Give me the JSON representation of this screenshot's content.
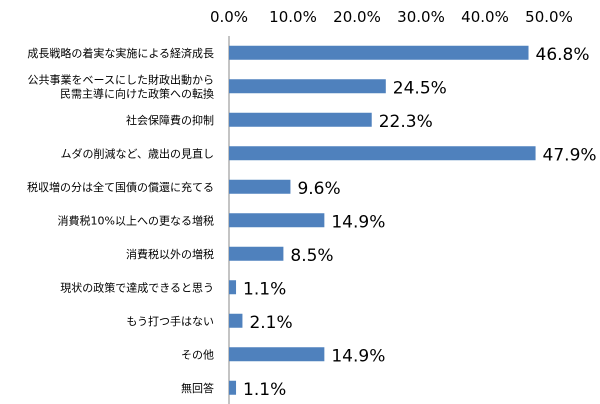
{
  "chart_data": {
    "type": "bar",
    "orientation": "horizontal",
    "title": "",
    "xlabel": "",
    "ylabel": "",
    "xlim": [
      0,
      50
    ],
    "x_ticks": [
      "0.0%",
      "10.0%",
      "20.0%",
      "30.0%",
      "40.0%",
      "50.0%"
    ],
    "x_axis_position": "top",
    "grid": false,
    "legend": "none",
    "bar_color": "#4f81bd",
    "categories": [
      "成長戦略の着実な実施による経済成長",
      "公共事業をベースにした財政出動から\n民需主導に向けた政策への転換",
      "社会保障費の抑制",
      "ムダの削減など、歳出の見直し",
      "税収増の分は全て国債の償還に充てる",
      "消費税10%以上への更なる増税",
      "消費税以外の増税",
      "現状の政策で達成できると思う",
      "もう打つ手はない",
      "その他",
      "無回答"
    ],
    "values": [
      46.8,
      24.5,
      22.3,
      47.9,
      9.6,
      14.9,
      8.5,
      1.1,
      2.1,
      14.9,
      1.1
    ],
    "value_labels": [
      "46.8%",
      "24.5%",
      "22.3%",
      "47.9%",
      "9.6%",
      "14.9%",
      "8.5%",
      "1.1%",
      "2.1%",
      "14.9%",
      "1.1%"
    ]
  }
}
